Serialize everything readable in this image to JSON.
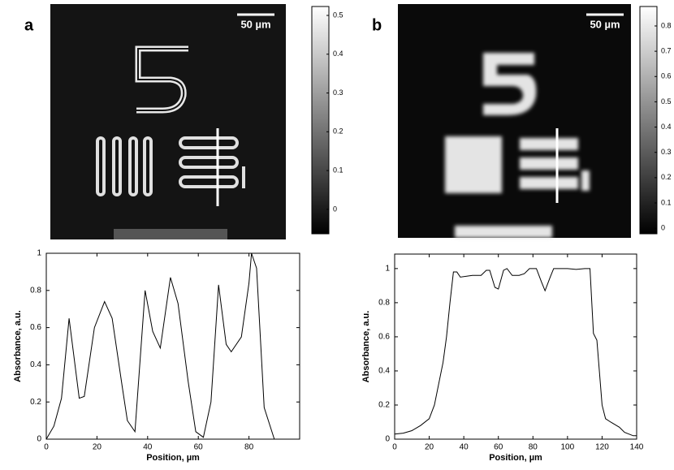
{
  "chart_data": [
    {
      "type": "image",
      "label": "a",
      "scale_bar": "50 µm",
      "colorbar_lim": [
        -0.063,
        0.523
      ],
      "colorbar_ticks": [
        0,
        0.1,
        0.2,
        0.3,
        0.4,
        0.5
      ]
    },
    {
      "type": "image",
      "label": "b",
      "scale_bar": "50 µm",
      "colorbar_lim": [
        -0.022,
        0.877
      ],
      "colorbar_ticks": [
        0,
        0.1,
        0.2,
        0.3,
        0.4,
        0.5,
        0.6,
        0.7,
        0.8
      ]
    },
    {
      "type": "line",
      "xlabel": "Position, µm",
      "ylabel": "Absorbance, a.u.",
      "color": "#000000",
      "x": [
        0,
        3,
        6,
        9,
        13,
        15,
        19,
        23,
        26,
        30,
        32,
        35,
        39,
        42,
        45,
        49,
        52,
        56,
        59,
        62,
        65,
        68,
        71,
        73,
        77,
        80,
        81,
        83,
        86,
        90
      ],
      "values": [
        0,
        0.07,
        0.22,
        0.65,
        0.22,
        0.23,
        0.6,
        0.74,
        0.65,
        0.28,
        0.1,
        0.04,
        0.8,
        0.58,
        0.49,
        0.87,
        0.73,
        0.31,
        0.04,
        0.01,
        0.2,
        0.83,
        0.51,
        0.47,
        0.55,
        0.84,
        1.0,
        0.92,
        0.17,
        0
      ],
      "xlim": [
        0,
        100
      ],
      "xticks": [
        0,
        20,
        40,
        60,
        80
      ],
      "ylim": [
        0,
        1
      ],
      "yticks": [
        0,
        0.2,
        0.4,
        0.6,
        0.8,
        1
      ]
    },
    {
      "type": "line",
      "xlabel": "Position, µm",
      "ylabel": "Absorbance, a.u.",
      "color": "#000000",
      "x": [
        0,
        5,
        10,
        15,
        20,
        23,
        26,
        28,
        30,
        32,
        34,
        36,
        38,
        45,
        50,
        53,
        55,
        58,
        60,
        63,
        65,
        68,
        72,
        75,
        78,
        82,
        85,
        87,
        90,
        92,
        100,
        105,
        110,
        113,
        115,
        117,
        120,
        122,
        125,
        130,
        133,
        138,
        140
      ],
      "values": [
        0.03,
        0.035,
        0.05,
        0.08,
        0.12,
        0.2,
        0.35,
        0.45,
        0.6,
        0.8,
        0.98,
        0.98,
        0.95,
        0.96,
        0.96,
        0.99,
        0.99,
        0.89,
        0.88,
        0.99,
        1.0,
        0.96,
        0.96,
        0.97,
        1.0,
        1.0,
        0.92,
        0.87,
        0.95,
        1.0,
        1.0,
        0.995,
        1.0,
        1.0,
        0.62,
        0.58,
        0.2,
        0.12,
        0.1,
        0.07,
        0.04,
        0.02,
        0.02
      ],
      "xlim": [
        0,
        140
      ],
      "xticks": [
        0,
        20,
        40,
        60,
        80,
        100,
        120,
        140
      ],
      "ylim": [
        0,
        1.085
      ],
      "yticks": [
        0,
        0.2,
        0.4,
        0.6,
        0.8,
        1
      ]
    }
  ]
}
